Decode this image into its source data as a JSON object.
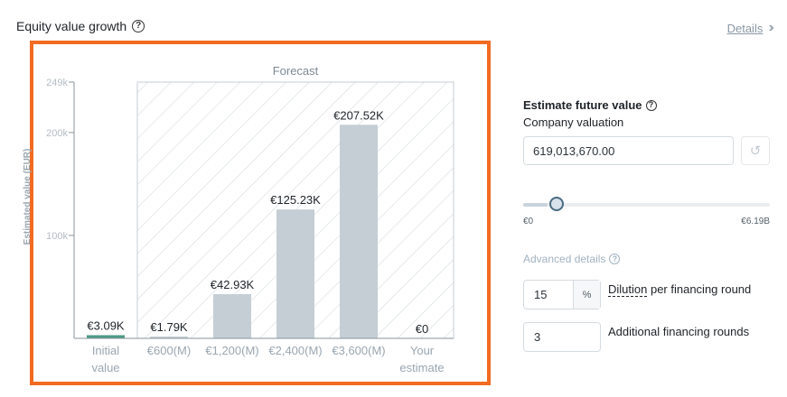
{
  "header": {
    "title": "Equity value growth",
    "details_label": "Details"
  },
  "chart_data": {
    "type": "bar",
    "forecast_label": "Forecast",
    "ylabel": "Estimated value (EUR)",
    "ylim": [
      0,
      249000
    ],
    "yticks": [
      {
        "value": 100000,
        "label": "100k"
      },
      {
        "value": 200000,
        "label": "200k"
      },
      {
        "value": 249000,
        "label": "249k"
      }
    ],
    "categories": [
      [
        "Initial",
        "value"
      ],
      [
        "€600(M)"
      ],
      [
        "€1,200(M)"
      ],
      [
        "€2,400(M)"
      ],
      [
        "€3,600(M)"
      ],
      [
        "Your",
        "estimate"
      ]
    ],
    "values": [
      3090,
      1790,
      42930,
      125230,
      207520,
      0
    ],
    "value_labels": [
      "€3.09K",
      "€1.79K",
      "€42.93K",
      "€125.23K",
      "€207.52K",
      "€0"
    ],
    "colors": {
      "initial": "#4e9b86",
      "forecast": "#c5ced4",
      "hatch": "#cfd6da"
    }
  },
  "estimate": {
    "title": "Estimate future value",
    "valuation_label": "Company valuation",
    "valuation_value": "619,013,670.00",
    "slider_min": "€0",
    "slider_max": "€6.19B",
    "slider_fraction": 0.1
  },
  "advanced": {
    "label": "Advanced details",
    "dilution_value": "15",
    "dilution_unit": "%",
    "dilution_label_underlined": "Dilution",
    "dilution_label_rest": " per financing round",
    "rounds_value": "3",
    "rounds_label": "Additional financing rounds"
  }
}
